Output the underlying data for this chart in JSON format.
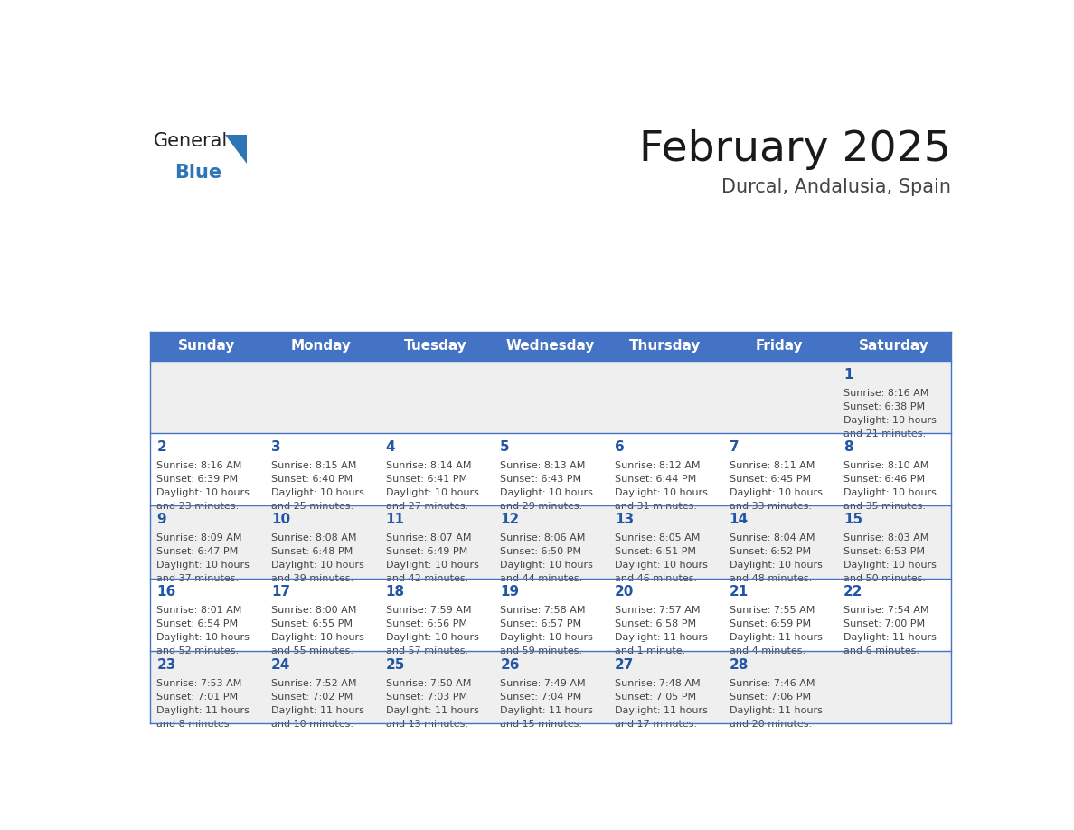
{
  "title": "February 2025",
  "subtitle": "Durcal, Andalusia, Spain",
  "header_bg": "#4472C4",
  "header_text_color": "#FFFFFF",
  "cell_bg_odd": "#EFEFEF",
  "cell_bg_even": "#FFFFFF",
  "day_names": [
    "Sunday",
    "Monday",
    "Tuesday",
    "Wednesday",
    "Thursday",
    "Friday",
    "Saturday"
  ],
  "title_color": "#1a1a1a",
  "subtitle_color": "#444444",
  "number_color": "#2255a4",
  "text_color": "#444444",
  "line_color": "#4472C4",
  "logo_blue": "#2E75B6",
  "logo_dark": "#1a1a1a",
  "days": [
    {
      "day": 1,
      "col": 6,
      "row": 0,
      "sunrise": "8:16 AM",
      "sunset": "6:38 PM",
      "daylight": "10 hours and 21 minutes."
    },
    {
      "day": 2,
      "col": 0,
      "row": 1,
      "sunrise": "8:16 AM",
      "sunset": "6:39 PM",
      "daylight": "10 hours and 23 minutes."
    },
    {
      "day": 3,
      "col": 1,
      "row": 1,
      "sunrise": "8:15 AM",
      "sunset": "6:40 PM",
      "daylight": "10 hours and 25 minutes."
    },
    {
      "day": 4,
      "col": 2,
      "row": 1,
      "sunrise": "8:14 AM",
      "sunset": "6:41 PM",
      "daylight": "10 hours and 27 minutes."
    },
    {
      "day": 5,
      "col": 3,
      "row": 1,
      "sunrise": "8:13 AM",
      "sunset": "6:43 PM",
      "daylight": "10 hours and 29 minutes."
    },
    {
      "day": 6,
      "col": 4,
      "row": 1,
      "sunrise": "8:12 AM",
      "sunset": "6:44 PM",
      "daylight": "10 hours and 31 minutes."
    },
    {
      "day": 7,
      "col": 5,
      "row": 1,
      "sunrise": "8:11 AM",
      "sunset": "6:45 PM",
      "daylight": "10 hours and 33 minutes."
    },
    {
      "day": 8,
      "col": 6,
      "row": 1,
      "sunrise": "8:10 AM",
      "sunset": "6:46 PM",
      "daylight": "10 hours and 35 minutes."
    },
    {
      "day": 9,
      "col": 0,
      "row": 2,
      "sunrise": "8:09 AM",
      "sunset": "6:47 PM",
      "daylight": "10 hours and 37 minutes."
    },
    {
      "day": 10,
      "col": 1,
      "row": 2,
      "sunrise": "8:08 AM",
      "sunset": "6:48 PM",
      "daylight": "10 hours and 39 minutes."
    },
    {
      "day": 11,
      "col": 2,
      "row": 2,
      "sunrise": "8:07 AM",
      "sunset": "6:49 PM",
      "daylight": "10 hours and 42 minutes."
    },
    {
      "day": 12,
      "col": 3,
      "row": 2,
      "sunrise": "8:06 AM",
      "sunset": "6:50 PM",
      "daylight": "10 hours and 44 minutes."
    },
    {
      "day": 13,
      "col": 4,
      "row": 2,
      "sunrise": "8:05 AM",
      "sunset": "6:51 PM",
      "daylight": "10 hours and 46 minutes."
    },
    {
      "day": 14,
      "col": 5,
      "row": 2,
      "sunrise": "8:04 AM",
      "sunset": "6:52 PM",
      "daylight": "10 hours and 48 minutes."
    },
    {
      "day": 15,
      "col": 6,
      "row": 2,
      "sunrise": "8:03 AM",
      "sunset": "6:53 PM",
      "daylight": "10 hours and 50 minutes."
    },
    {
      "day": 16,
      "col": 0,
      "row": 3,
      "sunrise": "8:01 AM",
      "sunset": "6:54 PM",
      "daylight": "10 hours and 52 minutes."
    },
    {
      "day": 17,
      "col": 1,
      "row": 3,
      "sunrise": "8:00 AM",
      "sunset": "6:55 PM",
      "daylight": "10 hours and 55 minutes."
    },
    {
      "day": 18,
      "col": 2,
      "row": 3,
      "sunrise": "7:59 AM",
      "sunset": "6:56 PM",
      "daylight": "10 hours and 57 minutes."
    },
    {
      "day": 19,
      "col": 3,
      "row": 3,
      "sunrise": "7:58 AM",
      "sunset": "6:57 PM",
      "daylight": "10 hours and 59 minutes."
    },
    {
      "day": 20,
      "col": 4,
      "row": 3,
      "sunrise": "7:57 AM",
      "sunset": "6:58 PM",
      "daylight": "11 hours and 1 minute."
    },
    {
      "day": 21,
      "col": 5,
      "row": 3,
      "sunrise": "7:55 AM",
      "sunset": "6:59 PM",
      "daylight": "11 hours and 4 minutes."
    },
    {
      "day": 22,
      "col": 6,
      "row": 3,
      "sunrise": "7:54 AM",
      "sunset": "7:00 PM",
      "daylight": "11 hours and 6 minutes."
    },
    {
      "day": 23,
      "col": 0,
      "row": 4,
      "sunrise": "7:53 AM",
      "sunset": "7:01 PM",
      "daylight": "11 hours and 8 minutes."
    },
    {
      "day": 24,
      "col": 1,
      "row": 4,
      "sunrise": "7:52 AM",
      "sunset": "7:02 PM",
      "daylight": "11 hours and 10 minutes."
    },
    {
      "day": 25,
      "col": 2,
      "row": 4,
      "sunrise": "7:50 AM",
      "sunset": "7:03 PM",
      "daylight": "11 hours and 13 minutes."
    },
    {
      "day": 26,
      "col": 3,
      "row": 4,
      "sunrise": "7:49 AM",
      "sunset": "7:04 PM",
      "daylight": "11 hours and 15 minutes."
    },
    {
      "day": 27,
      "col": 4,
      "row": 4,
      "sunrise": "7:48 AM",
      "sunset": "7:05 PM",
      "daylight": "11 hours and 17 minutes."
    },
    {
      "day": 28,
      "col": 5,
      "row": 4,
      "sunrise": "7:46 AM",
      "sunset": "7:06 PM",
      "daylight": "11 hours and 20 minutes."
    }
  ]
}
